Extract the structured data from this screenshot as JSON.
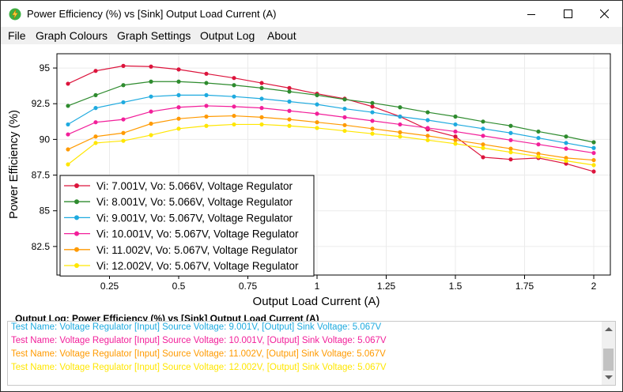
{
  "window": {
    "title": "Power Efficiency (%) vs [Sink] Output Load Current (A)",
    "icon": "lightning-power-icon"
  },
  "menu": {
    "items": [
      "File",
      "Graph Colours",
      "Graph Settings",
      "Output Log",
      "About"
    ]
  },
  "chart_data": {
    "type": "line",
    "title": "",
    "xlabel": "Output Load Current (A)",
    "ylabel": "Power Efficiency (%)",
    "xlim": [
      0.06,
      2.06
    ],
    "ylim": [
      80.5,
      96.0
    ],
    "xticks": [
      "0.25",
      "0.5",
      "0.75",
      "1",
      "1.25",
      "1.5",
      "1.75",
      "2"
    ],
    "xtick_values": [
      0.25,
      0.5,
      0.75,
      1,
      1.25,
      1.5,
      1.75,
      2
    ],
    "yticks": [
      "82.5",
      "85",
      "87.5",
      "90",
      "92.5",
      "95"
    ],
    "ytick_values": [
      82.5,
      85,
      87.5,
      90,
      92.5,
      95
    ],
    "grid": true,
    "legend_position": "bottom-left",
    "x": [
      0.1,
      0.2,
      0.3,
      0.4,
      0.5,
      0.6,
      0.7,
      0.8,
      0.9,
      1.0,
      1.1,
      1.2,
      1.3,
      1.4,
      1.5,
      1.6,
      1.7,
      1.8,
      1.9,
      2.0
    ],
    "series": [
      {
        "name": "Vi: 7.001V, Vo: 5.066V, Voltage Regulator",
        "color": "#dc143c",
        "values": [
          93.9,
          94.8,
          95.15,
          95.1,
          94.9,
          94.6,
          94.3,
          93.95,
          93.6,
          93.2,
          92.85,
          92.3,
          91.6,
          90.7,
          90.2,
          88.75,
          88.6,
          88.7,
          88.3,
          87.75
        ]
      },
      {
        "name": "Vi: 8.001V, Vo: 5.066V, Voltage Regulator",
        "color": "#2e8b2e",
        "values": [
          92.35,
          93.1,
          93.8,
          94.05,
          94.05,
          93.95,
          93.8,
          93.6,
          93.35,
          93.1,
          92.8,
          92.55,
          92.25,
          91.9,
          91.6,
          91.25,
          90.95,
          90.55,
          90.2,
          89.8
        ]
      },
      {
        "name": "Vi: 9.001V, Vo: 5.067V, Voltage Regulator",
        "color": "#1eaadf",
        "values": [
          91.05,
          92.2,
          92.6,
          93.0,
          93.1,
          93.1,
          93.0,
          92.85,
          92.65,
          92.45,
          92.15,
          91.9,
          91.6,
          91.35,
          91.05,
          90.75,
          90.45,
          90.1,
          89.75,
          89.4
        ]
      },
      {
        "name": "Vi: 10.001V, Vo: 5.067V, Voltage Regulator",
        "color": "#f21f9a",
        "values": [
          90.35,
          91.2,
          91.4,
          91.95,
          92.25,
          92.35,
          92.3,
          92.2,
          92.0,
          91.8,
          91.55,
          91.3,
          91.05,
          90.8,
          90.55,
          90.25,
          89.95,
          89.65,
          89.35,
          89.05
        ]
      },
      {
        "name": "Vi: 11.002V, Vo: 5.067V, Voltage Regulator",
        "color": "#ff9a00",
        "values": [
          89.3,
          90.2,
          90.45,
          91.1,
          91.45,
          91.6,
          91.65,
          91.55,
          91.4,
          91.2,
          91.0,
          90.75,
          90.5,
          90.25,
          89.95,
          89.65,
          89.35,
          89.0,
          88.7,
          88.55
        ]
      },
      {
        "name": "Vi: 12.002V, Vo: 5.067V, Voltage Regulator",
        "color": "#ffe600",
        "values": [
          88.25,
          89.75,
          89.9,
          90.3,
          90.75,
          90.95,
          91.05,
          91.05,
          90.95,
          90.8,
          90.6,
          90.4,
          90.2,
          89.95,
          89.7,
          89.4,
          89.1,
          88.8,
          88.5,
          88.2
        ]
      }
    ]
  },
  "log": {
    "header": "Output Log: Power Efficiency (%) vs [Sink] Output Load Current (A)",
    "lines": [
      {
        "text": "Test Name: Voltage Regulator [Input] Source Voltage: 9.001V, [Output] Sink Voltage: 5.067V",
        "color": "#1eaadf"
      },
      {
        "text": "Test Name: Voltage Regulator [Input] Source Voltage: 10.001V, [Output] Sink Voltage: 5.067V",
        "color": "#f21f9a"
      },
      {
        "text": "Test Name: Voltage Regulator [Input] Source Voltage: 11.002V, [Output] Sink Voltage: 5.067V",
        "color": "#ff9a00"
      },
      {
        "text": "Test Name: Voltage Regulator [Input] Source Voltage: 12.002V, [Output] Sink Voltage: 5.067V",
        "color": "#ffe600"
      }
    ]
  }
}
